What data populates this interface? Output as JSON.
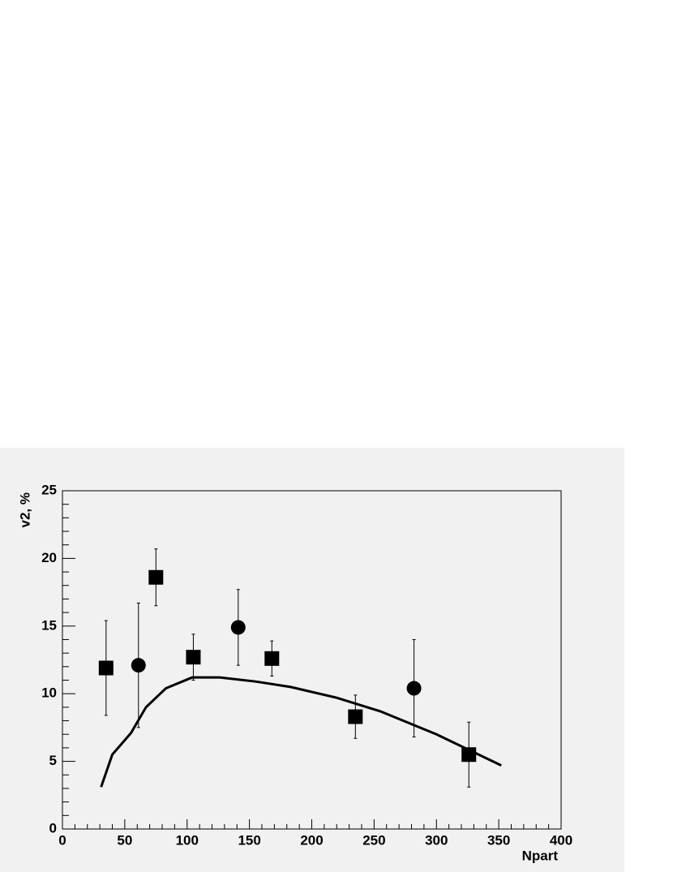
{
  "chart_data": {
    "type": "errorscatter",
    "xlabel": "Npart",
    "ylabel": "v2, %",
    "xlim": [
      0,
      400
    ],
    "xticks": [
      0,
      50,
      100,
      150,
      200,
      250,
      300,
      350,
      400
    ],
    "ylim": [
      0,
      25
    ],
    "yticks": [
      0,
      5,
      10,
      15,
      20,
      25
    ],
    "color": "#000000",
    "series": [
      {
        "marker": "square",
        "x": [
          35,
          75,
          105,
          168,
          235,
          326
        ],
        "values": [
          11.9,
          18.6,
          12.7,
          12.6,
          8.3,
          5.5
        ],
        "errors": [
          3.5,
          2.1,
          1.7,
          1.3,
          1.6,
          2.4
        ]
      },
      {
        "marker": "circle",
        "x": [
          61,
          141,
          282
        ],
        "values": [
          12.1,
          14.9,
          10.4
        ],
        "errors": [
          4.6,
          2.8,
          3.6
        ]
      },
      {
        "marker": "line",
        "x": [
          31,
          40,
          55,
          67,
          83,
          104,
          126,
          155,
          183,
          220,
          255,
          300,
          352
        ],
        "values": [
          3.1,
          5.5,
          7.1,
          9.0,
          10.4,
          11.2,
          11.2,
          10.9,
          10.5,
          9.7,
          8.7,
          7.0,
          4.7
        ]
      }
    ]
  }
}
